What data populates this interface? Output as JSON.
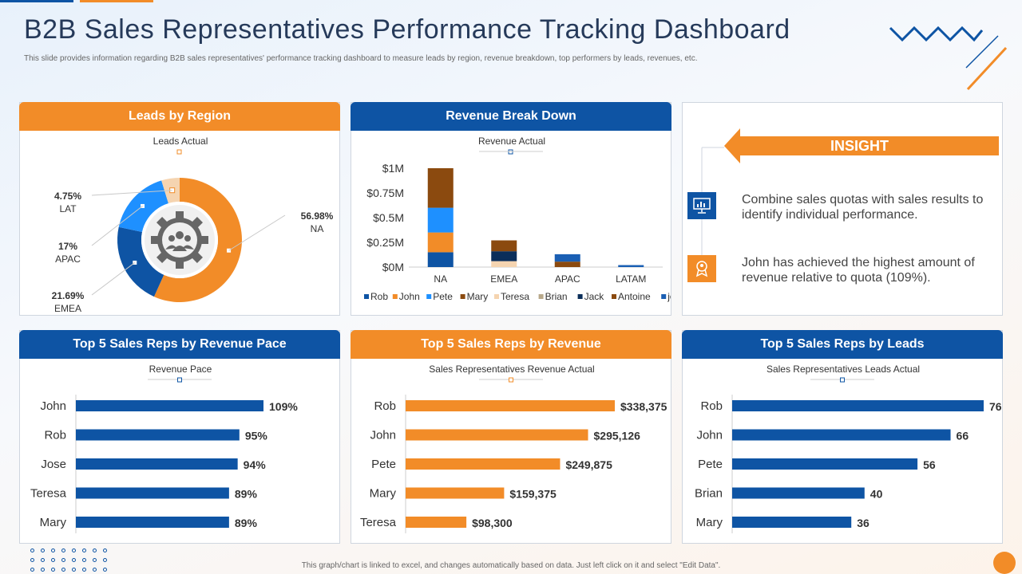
{
  "header": {
    "title": "B2B Sales Representatives Performance Tracking Dashboard",
    "subtitle": "This slide provides information regarding B2B sales representatives' performance tracking dashboard to measure leads by region, revenue breakdown, top performers by leads, revenues, etc."
  },
  "footer": "This graph/chart is linked to excel, and changes automatically based on data. Just left click on it and select \"Edit Data\".",
  "colors": {
    "blue": "#0e54a4",
    "orange": "#f28c28",
    "light_blue": "#1e90ff",
    "brown": "#8b4a0f",
    "peach": "#f5d4b0",
    "navy": "#0b2e5a"
  },
  "panels": {
    "leads_region": {
      "title": "Leads by Region",
      "subtitle": "Leads Actual"
    },
    "revenue_breakdown": {
      "title": "Revenue Break Down",
      "subtitle": "Revenue Actual"
    },
    "revenue_pace": {
      "title": "Top 5 Sales Reps by Revenue Pace",
      "subtitle": "Revenue Pace"
    },
    "reps_revenue": {
      "title": "Top 5 Sales Reps by Revenue",
      "subtitle": "Sales Representatives Revenue Actual"
    },
    "reps_leads": {
      "title": "Top 5 Sales Reps by Leads",
      "subtitle": "Sales Representatives Leads Actual"
    }
  },
  "insight": {
    "label": "INSIGHT",
    "items": [
      {
        "icon": "chart-monitor-icon",
        "text": "Combine sales quotas with sales results to identify individual performance."
      },
      {
        "icon": "award-person-icon",
        "text": "John has achieved the highest amount of revenue relative to quota (109%)."
      }
    ]
  },
  "chart_data": [
    {
      "type": "pie",
      "title": "Leads Actual",
      "labels": [
        "NA",
        "EMEA",
        "APAC",
        "LAT"
      ],
      "values": [
        56.98,
        21.69,
        17,
        4.75
      ],
      "value_labels": [
        "56.98%",
        "21.69%",
        "17%",
        "4.75%"
      ],
      "colors": [
        "#f28c28",
        "#0e54a4",
        "#1e90ff",
        "#f5d4b0"
      ]
    },
    {
      "type": "bar",
      "stacked": true,
      "title": "Revenue Actual",
      "categories": [
        "NA",
        "EMEA",
        "APAC",
        "LATAM"
      ],
      "ylim": [
        0,
        1000000
      ],
      "ytick_labels": [
        "$0M",
        "$0.25M",
        "$0.5M",
        "$0.75M",
        "$1M"
      ],
      "series": [
        {
          "name": "Rob",
          "color": "#0e54a4",
          "values": [
            150000,
            0,
            0,
            0
          ]
        },
        {
          "name": "John",
          "color": "#f28c28",
          "values": [
            200000,
            0,
            0,
            0
          ]
        },
        {
          "name": "Pete",
          "color": "#1e90ff",
          "values": [
            250000,
            0,
            0,
            0
          ]
        },
        {
          "name": "Mary",
          "color": "#8b4a0f",
          "values": [
            0,
            0,
            0,
            0
          ]
        },
        {
          "name": "Teresa",
          "color": "#f5d4b0",
          "values": [
            0,
            60000,
            0,
            0
          ]
        },
        {
          "name": "Brian",
          "color": "#b8a88a",
          "values": [
            0,
            0,
            0,
            0
          ]
        },
        {
          "name": "Jack",
          "color": "#0b2e5a",
          "values": [
            0,
            100000,
            0,
            0
          ]
        },
        {
          "name": "Antoine",
          "color": "#8b4a0f",
          "values": [
            400000,
            110000,
            55000,
            0
          ]
        },
        {
          "name": "jord",
          "color": "#1a5fb4",
          "values": [
            0,
            0,
            75000,
            20000
          ]
        }
      ]
    },
    {
      "type": "bar",
      "orientation": "horizontal",
      "title": "Revenue Pace",
      "categories": [
        "John",
        "Rob",
        "Jose",
        "Teresa",
        "Mary"
      ],
      "values": [
        109,
        95,
        94,
        89,
        89
      ],
      "value_labels": [
        "109%",
        "95%",
        "94%",
        "89%",
        "89%"
      ],
      "color": "#0e54a4"
    },
    {
      "type": "bar",
      "orientation": "horizontal",
      "title": "Sales Representatives Revenue Actual",
      "categories": [
        "Rob",
        "John",
        "Pete",
        "Mary",
        "Teresa"
      ],
      "values": [
        338375,
        295126,
        249875,
        159375,
        98300
      ],
      "value_labels": [
        "$338,375",
        "$295,126",
        "$249,875",
        "$159,375",
        "$98,300"
      ],
      "color": "#f28c28"
    },
    {
      "type": "bar",
      "orientation": "horizontal",
      "title": "Sales Representatives Leads Actual",
      "categories": [
        "Rob",
        "John",
        "Pete",
        "Brian",
        "Mary"
      ],
      "values": [
        76,
        66,
        56,
        40,
        36
      ],
      "value_labels": [
        "76",
        "66",
        "56",
        "40",
        "36"
      ],
      "color": "#0e54a4"
    }
  ]
}
